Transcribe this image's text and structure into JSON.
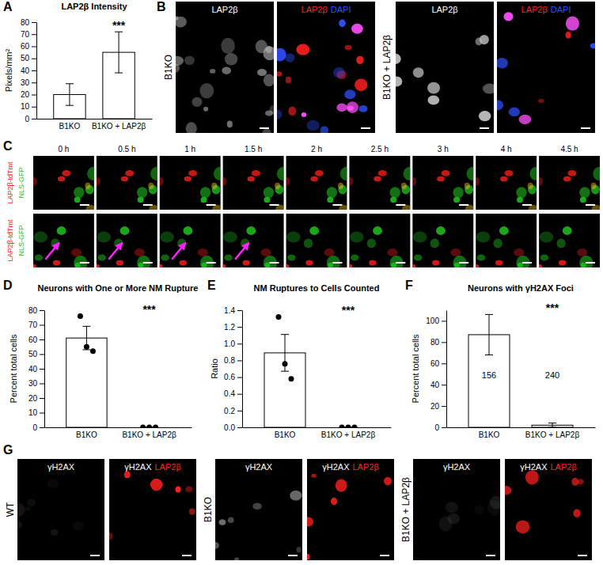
{
  "chart_data": [
    {
      "panel": "A",
      "type": "bar",
      "title": "LAP2β Intensity",
      "y_label": "Pixels/mm²",
      "categories": [
        "B1KO",
        "B1KO + LAP2β"
      ],
      "values": [
        20,
        55
      ],
      "error": [
        9,
        17
      ],
      "color": "#ffffff",
      "ylim": [
        0,
        80
      ],
      "yticks": [
        0,
        10,
        20,
        30,
        40,
        50,
        60,
        70,
        80
      ],
      "annotation": "***"
    },
    {
      "panel": "D",
      "type": "bar",
      "title": "Neurons with One or More NM Rupture",
      "y_label": "Percent total cells",
      "categories": [
        "B1KO",
        "B1KO + LAP2β"
      ],
      "values": [
        61,
        0
      ],
      "error": [
        8,
        0
      ],
      "points": [
        [
          76,
          55,
          52
        ],
        [
          0,
          0,
          0
        ]
      ],
      "color": "#ffffff",
      "ylim": [
        0,
        80
      ],
      "yticks": [
        0,
        10,
        20,
        30,
        40,
        50,
        60,
        70,
        80
      ],
      "annotation": "***"
    },
    {
      "panel": "E",
      "type": "bar",
      "title": "NM Ruptures to Cells Counted",
      "y_label": "Ratio",
      "categories": [
        "B1KO",
        "B1KO + LAP2β"
      ],
      "values": [
        0.89,
        0
      ],
      "error": [
        0.22,
        0
      ],
      "points": [
        [
          1.32,
          0.76,
          0.58
        ],
        [
          0,
          0,
          0
        ]
      ],
      "color": "#ffffff",
      "ylim": [
        0,
        1.4
      ],
      "yticks": [
        {
          "value": 0,
          "label": "0.0"
        },
        0.2,
        0.4,
        0.6,
        0.8,
        {
          "value": 1,
          "label": "1.0"
        },
        1.2,
        1.4
      ],
      "annotation": "***"
    },
    {
      "panel": "F",
      "type": "bar",
      "title": "Neurons with γH2AX Foci",
      "y_label": "Percent total cells",
      "categories": [
        "B1KO",
        "B1KO + LAP2β"
      ],
      "values": [
        87,
        2
      ],
      "error": [
        19,
        2
      ],
      "bar_text": [
        "156",
        "240"
      ],
      "color": "#ffffff",
      "ylim": [
        0,
        110
      ],
      "yticks": [
        0,
        20,
        40,
        60,
        80,
        100
      ],
      "annotation": "***"
    }
  ],
  "panels": {
    "B": {
      "panel": "B",
      "groups": [
        {
          "label": "B1KO",
          "images": [
            [
              {
                "text": "LAP2β",
                "color": "#ffffff"
              }
            ],
            [
              {
                "text": "LAP2β",
                "color": "#ff2020"
              },
              {
                "text": "DAPI",
                "color": "#3050ff"
              }
            ]
          ]
        },
        {
          "label": "B1KO + LAP2β",
          "images": [
            [
              {
                "text": "LAP2β",
                "color": "#ffffff"
              }
            ],
            [
              {
                "text": "LAP2β",
                "color": "#ff2020"
              },
              {
                "text": "DAPI",
                "color": "#3050ff"
              }
            ]
          ]
        }
      ]
    },
    "C": {
      "panel": "C",
      "times": [
        "0 h",
        "0.5 h",
        "1 h",
        "1.5 h",
        "2 h",
        "2.5 h",
        "3 h",
        "4 h",
        "4.5 h"
      ],
      "rows": [
        {
          "channels": [
            {
              "text": "LAP2β-tdTmt",
              "color": "#ff2020"
            },
            {
              "text": "NLS-GFP",
              "color": "#20c020"
            }
          ],
          "arrows": [
            false,
            false,
            false,
            false,
            false,
            false,
            false,
            false,
            false
          ]
        },
        {
          "channels": [
            {
              "text": "LAP2β-tdTmt",
              "color": "#ff2020"
            },
            {
              "text": "NLS-GFP",
              "color": "#20c020"
            }
          ],
          "arrows": [
            true,
            true,
            true,
            true,
            false,
            false,
            false,
            false,
            false
          ]
        }
      ]
    },
    "G": {
      "panel": "G",
      "groups": [
        {
          "label": "WT",
          "images": [
            [
              {
                "text": "γH2AX",
                "color": "#ffffff"
              }
            ],
            [
              {
                "text": "γH2AX",
                "color": "#ffffff"
              },
              {
                "text": "LAP2β",
                "color": "#ff2020"
              }
            ]
          ]
        },
        {
          "label": "B1KO",
          "images": [
            [
              {
                "text": "γH2AX",
                "color": "#ffffff"
              }
            ],
            [
              {
                "text": "γH2AX",
                "color": "#ffffff"
              },
              {
                "text": "LAP2β",
                "color": "#ff2020"
              }
            ]
          ]
        },
        {
          "label": "B1KO + LAP2β",
          "images": [
            [
              {
                "text": "γH2AX",
                "color": "#ffffff"
              }
            ],
            [
              {
                "text": "γH2AX",
                "color": "#ffffff"
              },
              {
                "text": "LAP2β",
                "color": "#ff2020"
              }
            ]
          ]
        }
      ]
    }
  }
}
